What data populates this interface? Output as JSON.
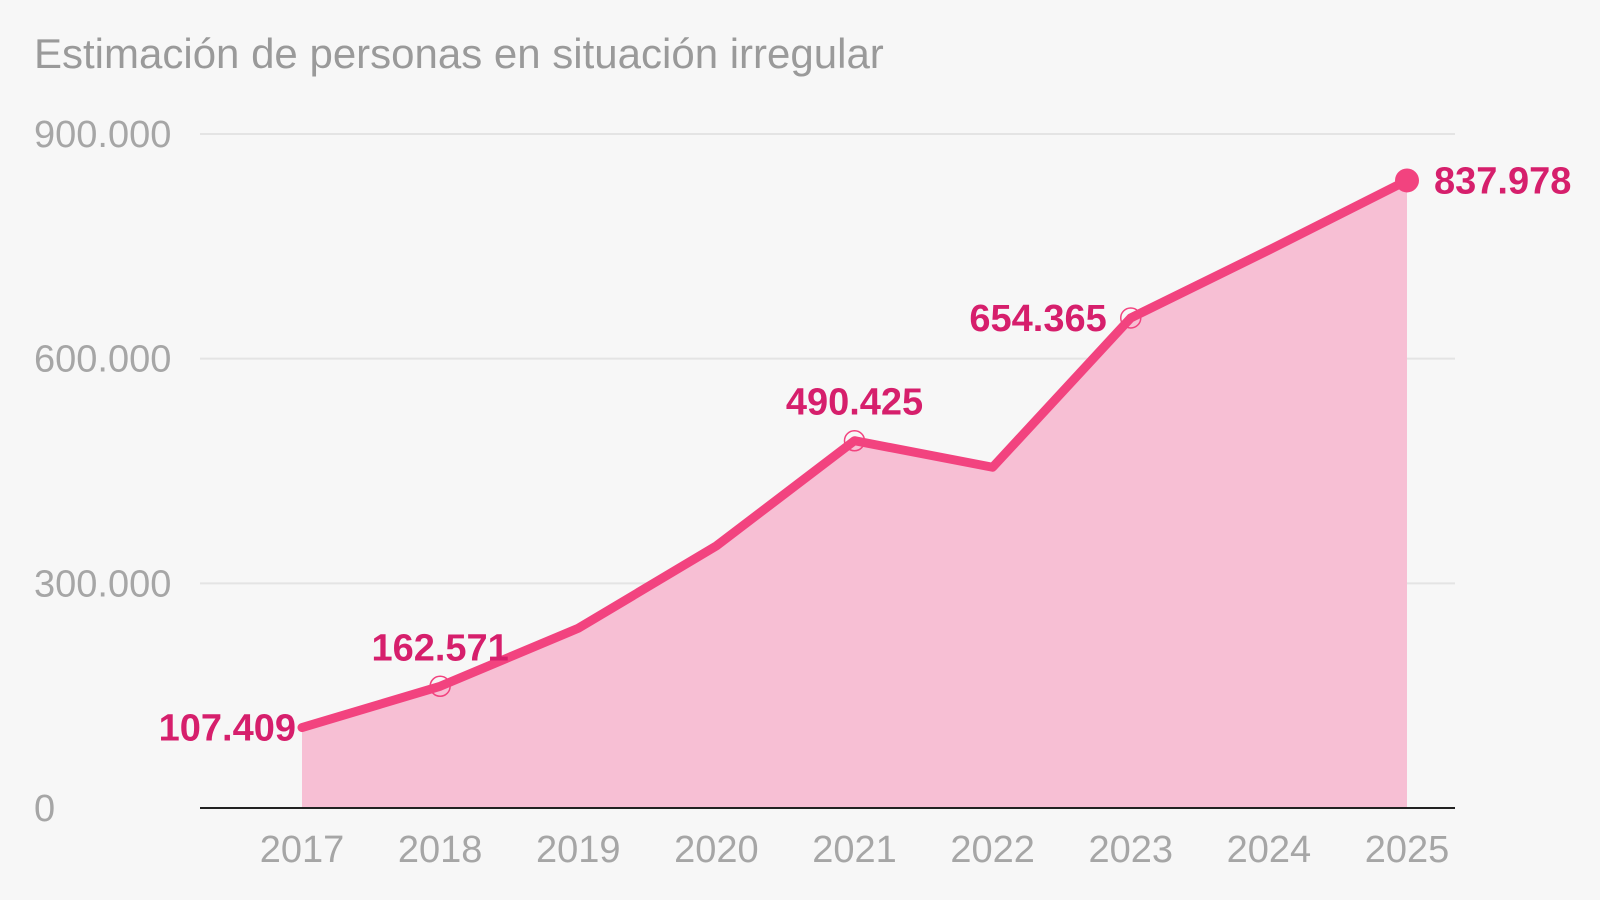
{
  "chart_data": {
    "type": "area",
    "title": "Estimación de personas en situación irregular",
    "xlabel": "",
    "ylabel": "",
    "x": [
      2017,
      2018,
      2019,
      2020,
      2021,
      2022,
      2023,
      2024,
      2025
    ],
    "series": [
      {
        "values": [
          107409,
          162571,
          240000,
          350000,
          490425,
          455000,
          654365,
          745000,
          837978
        ]
      }
    ],
    "ylim": [
      0,
      900000
    ],
    "yticks": [
      "0",
      "300.000",
      "600.000",
      "900.000"
    ],
    "xticks": [
      "2017",
      "2018",
      "2019",
      "2020",
      "2021",
      "2022",
      "2023",
      "2024",
      "2025"
    ],
    "data_labels": [
      {
        "x": 2017,
        "text": "107.409"
      },
      {
        "x": 2018,
        "text": "162.571"
      },
      {
        "x": 2021,
        "text": "490.425"
      },
      {
        "x": 2023,
        "text": "654.365"
      },
      {
        "x": 2025,
        "text": "837.978"
      }
    ],
    "grid": true,
    "colors": {
      "line": "#f2437f",
      "fill": "#f7bfd4",
      "label": "#d61f6c",
      "axis": "#222222",
      "grid": "#e4e4e4",
      "tick": "#a6a6a6"
    }
  }
}
